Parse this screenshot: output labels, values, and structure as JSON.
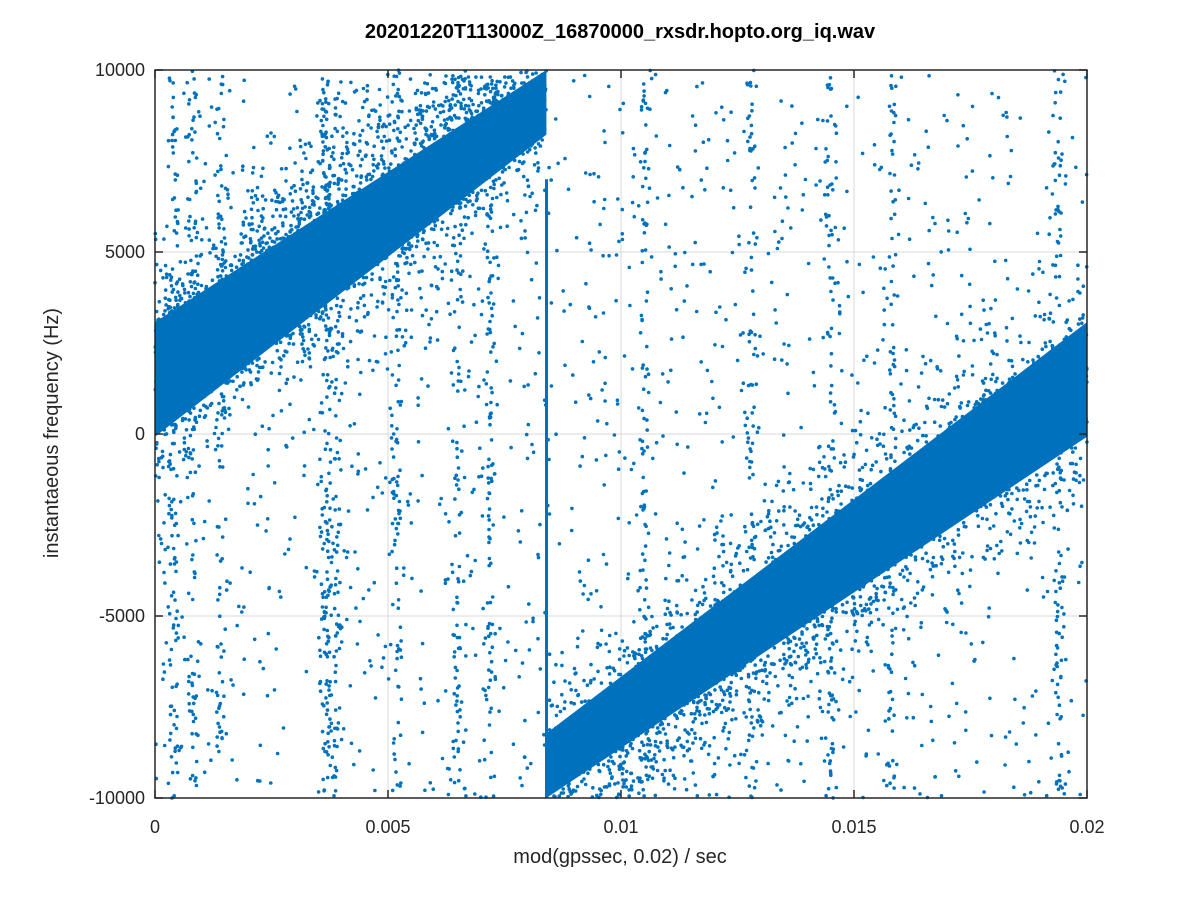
{
  "chart_data": {
    "type": "scatter",
    "title": "20201220T113000Z_16870000_rxsdr.hopto.org_iq.wav",
    "xlabel": "mod(gpssec, 0.02) / sec",
    "ylabel": "instantaeous frequency (Hz)",
    "xlim": [
      0,
      0.02
    ],
    "ylim": [
      -10000,
      10000
    ],
    "x_ticks": [
      0,
      0.005,
      0.01,
      0.015,
      0.02
    ],
    "x_tick_labels": [
      "0",
      "0.005",
      "0.01",
      "0.015",
      "0.02"
    ],
    "y_ticks": [
      -10000,
      -5000,
      0,
      5000,
      10000
    ],
    "y_tick_labels": [
      "-10000",
      "-5000",
      "0",
      "5000",
      "10000"
    ],
    "grid": true,
    "marker_color": "#0072bd",
    "series": [
      {
        "description_of_structure": "",
        "bands": [
          {
            "x_start": 0.0,
            "x_end": 0.0084,
            "y_at_start": 1500,
            "y_at_end": 9800,
            "width": 3500
          },
          {
            "x_start": 0.0084,
            "x_end": 0.02,
            "y_at_start": -9800,
            "y_at_end": 1500,
            "width": 3500
          }
        ],
        "vertical_streak_x": 0.0084,
        "vertical_streak_yrange": [
          -10000,
          7000
        ]
      }
    ]
  }
}
